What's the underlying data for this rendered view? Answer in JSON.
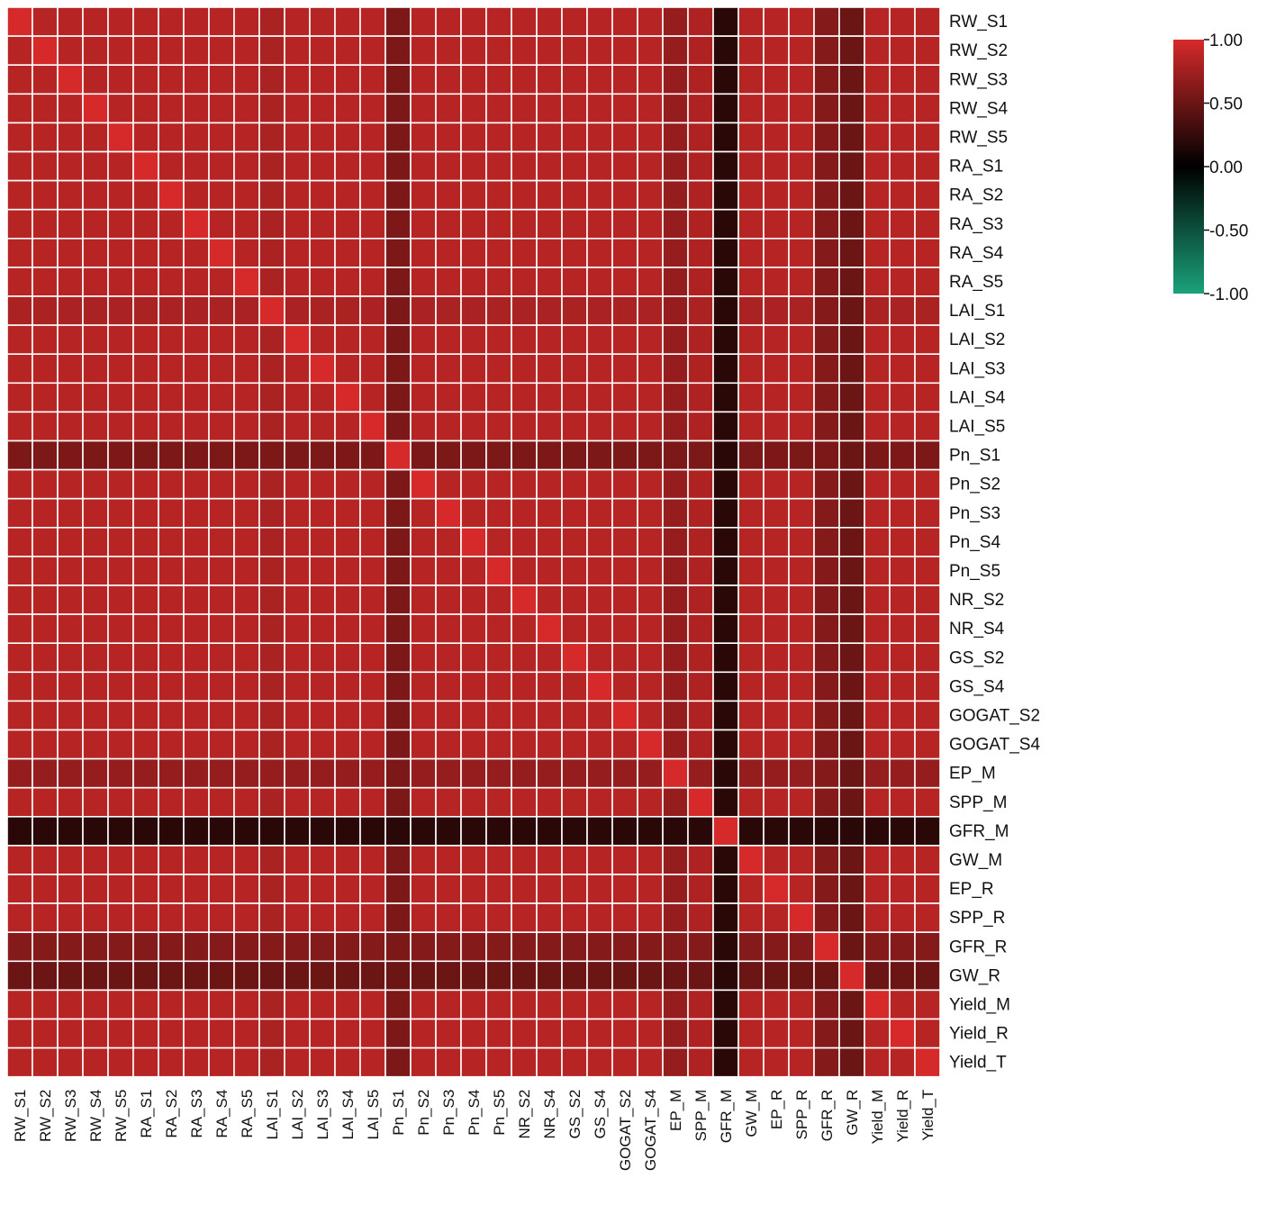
{
  "chart_data": {
    "type": "heatmap",
    "title": "",
    "variables": [
      "RW_S1",
      "RW_S2",
      "RW_S3",
      "RW_S4",
      "RW_S5",
      "RA_S1",
      "RA_S2",
      "RA_S3",
      "RA_S4",
      "RA_S5",
      "LAI_S1",
      "LAI_S2",
      "LAI_S3",
      "LAI_S4",
      "LAI_S5",
      "Pn_S1",
      "Pn_S2",
      "Pn_S3",
      "Pn_S4",
      "Pn_S5",
      "NR_S2",
      "NR_S4",
      "GS_S2",
      "GS_S4",
      "GOGAT_S2",
      "GOGAT_S4",
      "EP_M",
      "SPP_M",
      "GFR_M",
      "GW_M",
      "EP_R",
      "SPP_R",
      "GFR_R",
      "GW_R",
      "Yield_M",
      "Yield_R",
      "Yield_T"
    ],
    "default_value": 0.85,
    "row_values": {
      "Pn_S1": 0.58,
      "GFR_M": 0.2,
      "GW_R": 0.5,
      "GFR_R": 0.62,
      "EP_M": 0.7,
      "LAI_S1": 0.8
    },
    "col_values": {
      "Pn_S1": 0.58,
      "GFR_M": 0.2,
      "GW_R": 0.5,
      "GFR_R": 0.62,
      "EP_M": 0.7,
      "SPP_M": 0.82,
      "LAI_S1": 0.8
    },
    "diagonal": 1.0,
    "colorbar": {
      "ticks": [
        "1.00",
        "0.50",
        "0.00",
        "-0.50",
        "-1.00"
      ],
      "range": [
        -1,
        1
      ],
      "color_high": "#d62a2a",
      "color_mid": "#000000",
      "color_low": "#1aa27a"
    },
    "grid": true,
    "grid_color": "#ffffff"
  }
}
